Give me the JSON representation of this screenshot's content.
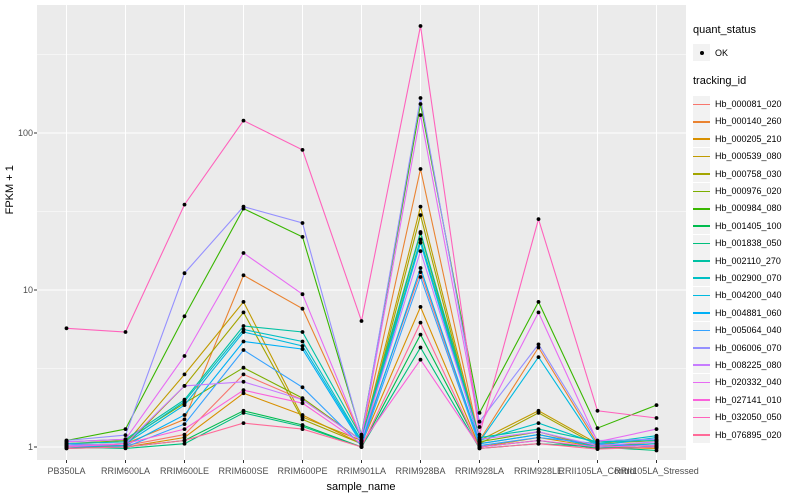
{
  "figure": {
    "background": "#FFFFFF",
    "panel_background": "#EBEBEB",
    "grid_color": "#FFFFFF",
    "axis_text_color": "#4D4D4D",
    "tick_mark_color": "#333333",
    "point_color": "#000000"
  },
  "legend": {
    "quant_status_title": "quant_status",
    "quant_status_value": "OK",
    "tracking_title": "tracking_id"
  },
  "chart_data": {
    "type": "line",
    "xlabel": "sample_name",
    "ylabel": "FPKM + 1",
    "y_scale": "log10",
    "grid": true,
    "legend_position": "right",
    "y_major_ticks": [
      1,
      10,
      100
    ],
    "y_minor_ticks": [
      3.162,
      31.62,
      316.2
    ],
    "ylim": [
      0.83,
      650
    ],
    "point_shape": "filled-black-dot",
    "quant_status": "OK",
    "categories": [
      "PB350LA",
      "RRIM600LA",
      "RRIM600LE",
      "RRIM600SE",
      "RRIM600PE",
      "RRIM901LA",
      "RRIM928BA",
      "RRIM928LA",
      "RRIM928LE",
      "RRII105LA_Control",
      "RRII105LA_Stressed"
    ],
    "series": [
      {
        "name": "Hb_000081_020",
        "color": "#F8766D",
        "values": [
          1.05,
          1.02,
          1.2,
          2.9,
          2.0,
          1.1,
          13.0,
          1.05,
          1.2,
          1.02,
          1.05
        ]
      },
      {
        "name": "Hb_000140_260",
        "color": "#EA8331",
        "values": [
          1.0,
          1.05,
          1.5,
          12.4,
          7.6,
          1.15,
          59,
          1.1,
          4.3,
          1.05,
          1.0
        ]
      },
      {
        "name": "Hb_000205_210",
        "color": "#D89000",
        "values": [
          1.0,
          1.0,
          1.15,
          2.2,
          1.6,
          1.05,
          7.8,
          1.0,
          1.15,
          1.0,
          0.98
        ]
      },
      {
        "name": "Hb_000539_080",
        "color": "#C09B00",
        "values": [
          1.02,
          1.05,
          2.9,
          8.4,
          1.55,
          1.1,
          34,
          1.1,
          1.7,
          1.05,
          1.1
        ]
      },
      {
        "name": "Hb_000758_030",
        "color": "#A3A500",
        "values": [
          1.0,
          1.02,
          2.45,
          7.2,
          1.5,
          1.05,
          30,
          1.05,
          1.65,
          1.02,
          1.05
        ]
      },
      {
        "name": "Hb_000976_020",
        "color": "#7CAE00",
        "values": [
          1.05,
          1.1,
          1.9,
          3.2,
          2.05,
          1.1,
          23,
          1.08,
          1.25,
          1.0,
          1.02
        ]
      },
      {
        "name": "Hb_000984_080",
        "color": "#39B600",
        "values": [
          1.1,
          1.3,
          6.8,
          33,
          21.8,
          1.2,
          153,
          1.65,
          8.4,
          1.32,
          1.85
        ]
      },
      {
        "name": "Hb_001405_100",
        "color": "#00BB4E",
        "values": [
          0.98,
          1.0,
          1.1,
          1.7,
          1.38,
          1.0,
          5.2,
          1.0,
          1.1,
          0.98,
          1.0
        ]
      },
      {
        "name": "Hb_001838_050",
        "color": "#00BF7D",
        "values": [
          1.0,
          0.98,
          1.05,
          1.65,
          1.35,
          1.0,
          4.3,
          0.98,
          1.05,
          1.0,
          0.95
        ]
      },
      {
        "name": "Hb_002110_270",
        "color": "#00C1A3",
        "values": [
          1.08,
          1.12,
          2.0,
          5.9,
          5.4,
          1.15,
          23.4,
          1.15,
          1.3,
          1.08,
          1.1
        ]
      },
      {
        "name": "Hb_002900_070",
        "color": "#00BFC4",
        "values": [
          1.05,
          1.08,
          1.95,
          5.6,
          4.7,
          1.1,
          21,
          1.1,
          1.42,
          1.05,
          1.18
        ]
      },
      {
        "name": "Hb_004200_040",
        "color": "#00BAE0",
        "values": [
          1.02,
          1.05,
          1.85,
          5.4,
          4.4,
          1.08,
          20,
          1.08,
          3.74,
          1.02,
          1.15
        ]
      },
      {
        "name": "Hb_004881_060",
        "color": "#00B0F6",
        "values": [
          1.0,
          1.02,
          1.6,
          4.7,
          4.2,
          1.05,
          13.8,
          1.05,
          1.2,
          1.0,
          1.05
        ]
      },
      {
        "name": "Hb_005064_040",
        "color": "#35A2FF",
        "values": [
          1.05,
          1.0,
          1.4,
          4.15,
          2.4,
          1.02,
          12.1,
          1.02,
          1.15,
          1.05,
          1.0
        ]
      },
      {
        "name": "Hb_006006_070",
        "color": "#9590FF",
        "values": [
          1.1,
          1.19,
          12.8,
          34,
          26.7,
          1.18,
          167,
          1.45,
          4.5,
          1.1,
          1.12
        ]
      },
      {
        "name": "Hb_008225_080",
        "color": "#C77CFF",
        "values": [
          1.02,
          1.05,
          2.45,
          2.6,
          2.0,
          1.1,
          17.7,
          1.12,
          1.25,
          1.02,
          1.08
        ]
      },
      {
        "name": "Hb_020332_040",
        "color": "#E76BF3",
        "values": [
          1.08,
          1.12,
          3.8,
          17.2,
          9.4,
          1.15,
          130,
          1.34,
          7.2,
          1.08,
          1.3
        ]
      },
      {
        "name": "Hb_027141_010",
        "color": "#FA62DB",
        "values": [
          1.0,
          1.05,
          1.3,
          2.3,
          1.9,
          1.05,
          3.6,
          1.0,
          1.1,
          1.0,
          1.02
        ]
      },
      {
        "name": "Hb_032050_050",
        "color": "#FF62BC",
        "values": [
          5.7,
          5.4,
          35,
          120,
          78,
          6.35,
          480,
          1.2,
          28.3,
          1.7,
          1.53
        ]
      },
      {
        "name": "Hb_076895_020",
        "color": "#FF6A98",
        "values": [
          0.98,
          1.0,
          1.1,
          1.42,
          1.3,
          1.0,
          6.2,
          0.98,
          1.05,
          0.97,
          1.0
        ]
      }
    ]
  }
}
